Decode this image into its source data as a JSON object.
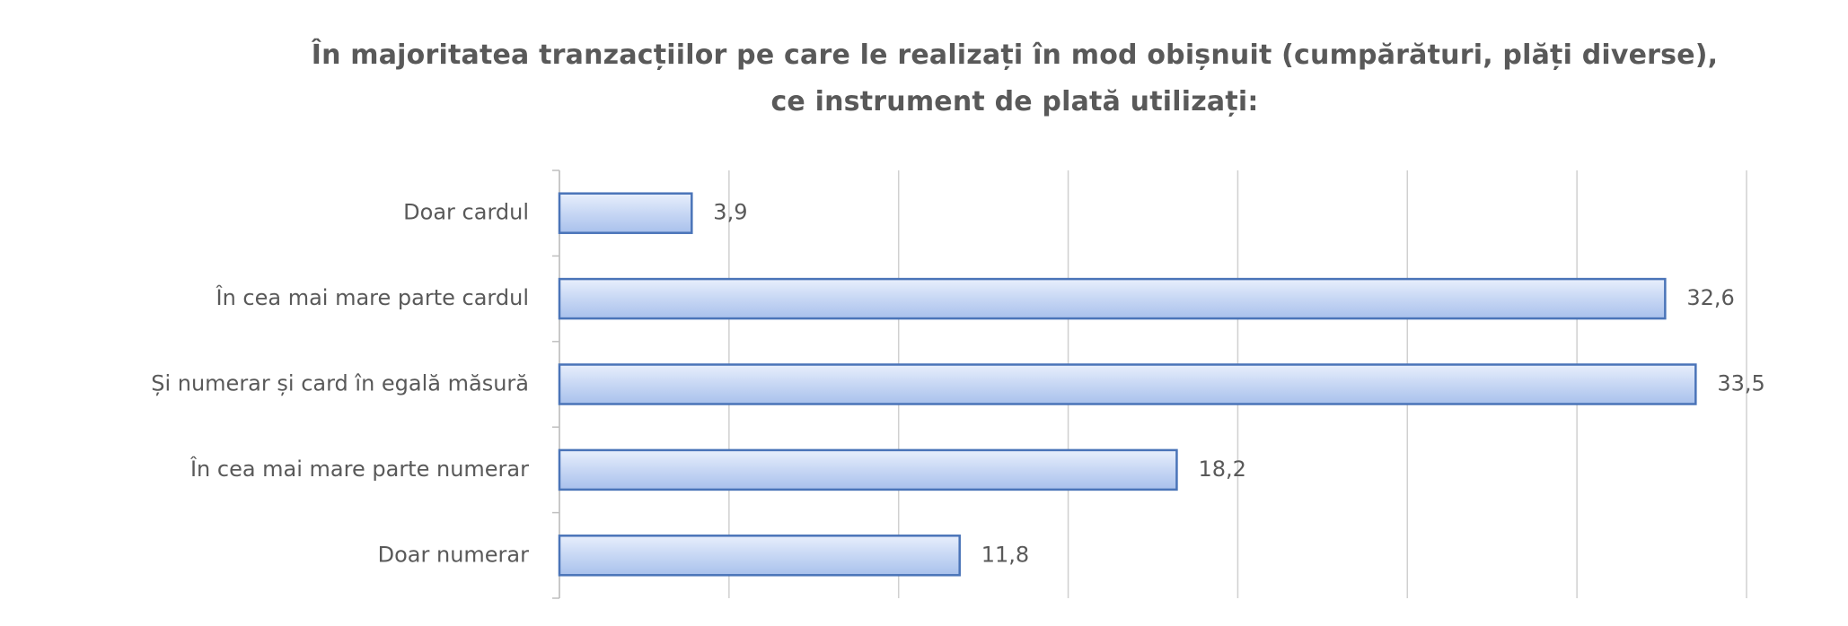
{
  "chart_data": {
    "type": "bar",
    "orientation": "horizontal",
    "title": "În majoritatea tranzacțiilor pe care le realizați în mod obișnuit (cumpărături, plăți diverse), ce instrument de plată utilizați:",
    "categories": [
      "Doar cardul",
      "În cea mai mare parte cardul",
      "Și numerar și card în egală măsură",
      "În cea mai mare parte numerar",
      "Doar numerar"
    ],
    "values": [
      3.9,
      32.6,
      33.5,
      18.2,
      11.8
    ],
    "value_labels": [
      "3,9",
      "32,6",
      "33,5",
      "18,2",
      "11,8"
    ],
    "color": "#4a74b8",
    "xlim": [
      0,
      35
    ],
    "xticks": [
      0,
      5,
      10,
      15,
      20,
      25,
      30,
      35
    ],
    "grid": true
  }
}
